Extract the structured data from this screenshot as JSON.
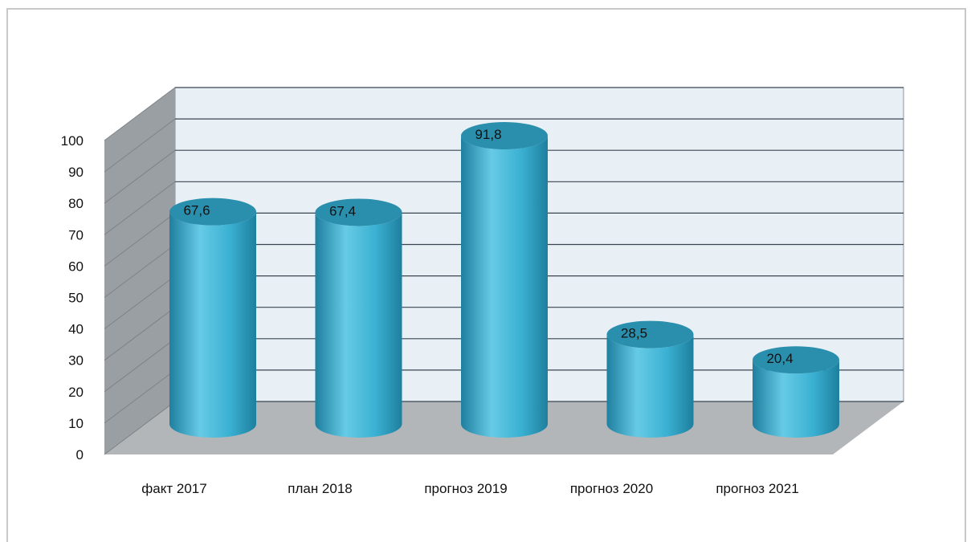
{
  "colors": {
    "bar_main": "#3ab0d2",
    "bar_light": "#66cbe6",
    "bar_dark": "#1e7f9e",
    "bar_top": "#2a8ead",
    "back_wall": "#e8f0f6",
    "side_wall": "#9a9fa3",
    "floor": "#b2b6b9",
    "grid": "#3a4550"
  },
  "chart_data": {
    "type": "bar",
    "style": "3d-cylinder",
    "title": "",
    "xlabel": "",
    "ylabel": "",
    "categories": [
      "факт 2017",
      "план 2018",
      "прогноз 2019",
      "прогноз 2020",
      "прогноз 2021"
    ],
    "values": [
      67.6,
      67.4,
      91.8,
      28.5,
      20.4
    ],
    "value_labels": [
      "67,6",
      "67,4",
      "91,8",
      "28,5",
      "20,4"
    ],
    "ylim": [
      0,
      100
    ],
    "yticks": [
      "0",
      "10",
      "20",
      "30",
      "40",
      "50",
      "60",
      "70",
      "80",
      "90",
      "100"
    ],
    "grid": true,
    "legend": "none"
  }
}
